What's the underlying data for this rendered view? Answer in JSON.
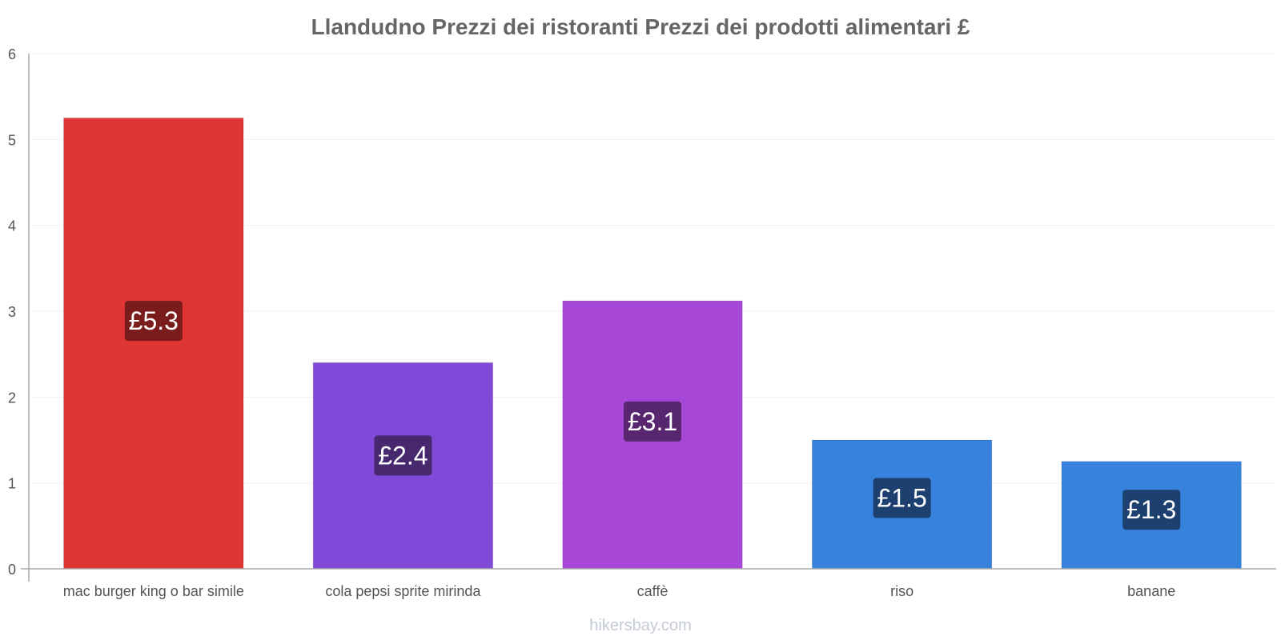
{
  "chart_data": {
    "type": "bar",
    "title": "Llandudno Prezzi dei ristoranti Prezzi dei prodotti alimentari £",
    "xlabel": "",
    "ylabel": "",
    "ylim": [
      0,
      6
    ],
    "yticks": [
      "0",
      "1",
      "2",
      "3",
      "4",
      "5",
      "6"
    ],
    "grid": true,
    "categories": [
      "mac burger king o bar simile",
      "cola pepsi sprite mirinda",
      "caffè",
      "riso",
      "banane"
    ],
    "values": [
      5.25,
      2.4,
      3.12,
      1.5,
      1.25
    ],
    "labels": [
      "£5.3",
      "£2.4",
      "£3.1",
      "£1.5",
      "£1.3"
    ],
    "colors": [
      "#e03535",
      "#8049d8",
      "#a647d8",
      "#3682dd",
      "#3682dd"
    ],
    "label_bg_colors": [
      "#7a1c1c",
      "#47286f",
      "#58256f",
      "#1e4070",
      "#1e4070"
    ]
  },
  "watermark": "hikersbay.com"
}
